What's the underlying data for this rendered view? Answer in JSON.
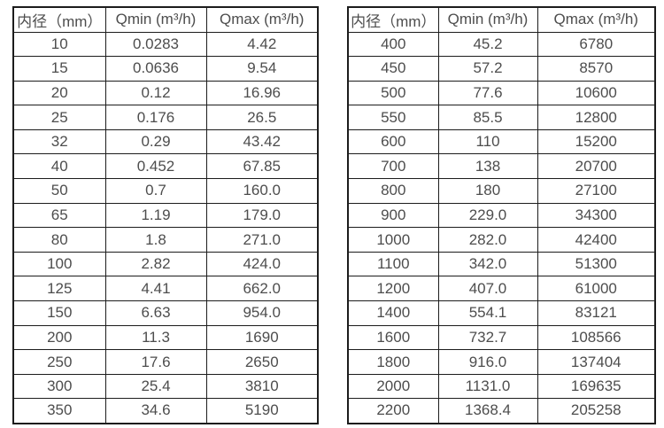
{
  "style": {
    "border_color": "#1c1c1c",
    "text_color": "#4d4d4d",
    "background_color": "#ffffff"
  },
  "tables": [
    {
      "name": "flow-rate-table-small-diameters",
      "headers": [
        "内径（mm）",
        "Qmin (m³/h)",
        "Qmax (m³/h)"
      ],
      "rows": [
        [
          "10",
          "0.0283",
          "4.42"
        ],
        [
          "15",
          "0.0636",
          "9.54"
        ],
        [
          "20",
          "0.12",
          "16.96"
        ],
        [
          "25",
          "0.176",
          "26.5"
        ],
        [
          "32",
          "0.29",
          "43.42"
        ],
        [
          "40",
          "0.452",
          "67.85"
        ],
        [
          "50",
          "0.7",
          "160.0"
        ],
        [
          "65",
          "1.19",
          "179.0"
        ],
        [
          "80",
          "1.8",
          "271.0"
        ],
        [
          "100",
          "2.82",
          "424.0"
        ],
        [
          "125",
          "4.41",
          "662.0"
        ],
        [
          "150",
          "6.63",
          "954.0"
        ],
        [
          "200",
          "11.3",
          "1690"
        ],
        [
          "250",
          "17.6",
          "2650"
        ],
        [
          "300",
          "25.4",
          "3810"
        ],
        [
          "350",
          "34.6",
          "5190"
        ]
      ]
    },
    {
      "name": "flow-rate-table-large-diameters",
      "headers": [
        "内径（mm）",
        "Qmin (m³/h)",
        "Qmax (m³/h)"
      ],
      "rows": [
        [
          "400",
          "45.2",
          "6780"
        ],
        [
          "450",
          "57.2",
          "8570"
        ],
        [
          "500",
          "77.6",
          "10600"
        ],
        [
          "550",
          "85.5",
          "12800"
        ],
        [
          "600",
          "110",
          "15200"
        ],
        [
          "700",
          "138",
          "20700"
        ],
        [
          "800",
          "180",
          "27100"
        ],
        [
          "900",
          "229.0",
          "34300"
        ],
        [
          "1000",
          "282.0",
          "42400"
        ],
        [
          "1100",
          "342.0",
          "51300"
        ],
        [
          "1200",
          "407.0",
          "61000"
        ],
        [
          "1400",
          "554.1",
          "83121"
        ],
        [
          "1600",
          "732.7",
          "108566"
        ],
        [
          "1800",
          "916.0",
          "137404"
        ],
        [
          "2000",
          "1131.0",
          "169635"
        ],
        [
          "2200",
          "1368.4",
          "205258"
        ]
      ]
    }
  ]
}
